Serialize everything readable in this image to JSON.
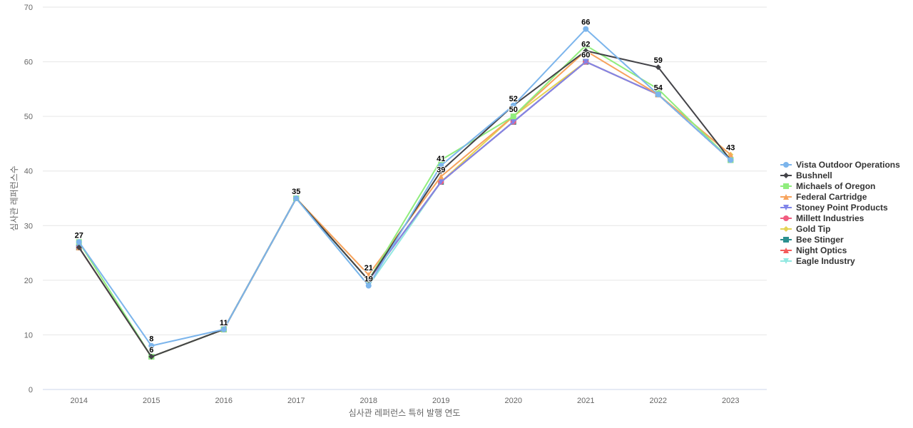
{
  "chart_data": {
    "type": "line",
    "xlabel": "심사관 레퍼런스 특허 발행 연도",
    "ylabel": "심사관 레퍼런스수",
    "ylim": [
      0,
      70
    ],
    "yticks": [
      0,
      10,
      20,
      30,
      40,
      50,
      60,
      70
    ],
    "grid": true,
    "legend_position": "right",
    "categories": [
      "2014",
      "2015",
      "2016",
      "2017",
      "2018",
      "2019",
      "2020",
      "2021",
      "2022",
      "2023"
    ],
    "series": [
      {
        "name": "Vista Outdoor Operations",
        "color": "#7cb5ec",
        "marker": "circle",
        "values": [
          27,
          8,
          11,
          35,
          19,
          41,
          52,
          66,
          54,
          42
        ]
      },
      {
        "name": "Bushnell",
        "color": "#434348",
        "marker": "diamond",
        "values": [
          26,
          6,
          11,
          35,
          20,
          40,
          52,
          62,
          59,
          42
        ]
      },
      {
        "name": "Michaels of Oregon",
        "color": "#90ed7d",
        "marker": "square",
        "values": [
          27,
          6,
          11,
          35,
          20,
          42,
          50,
          63,
          55,
          42
        ]
      },
      {
        "name": "Federal Cartridge",
        "color": "#f7a35c",
        "marker": "triangle",
        "values": [
          26,
          6,
          11,
          35,
          21,
          39,
          50,
          62,
          54,
          43
        ]
      },
      {
        "name": "Stoney Point Products",
        "color": "#8085e9",
        "marker": "triangle-down",
        "values": [
          26,
          6,
          11,
          35,
          20,
          38,
          49,
          60,
          54,
          42
        ]
      },
      {
        "name": "Millett Industries",
        "color": "#f15c80",
        "marker": "circle",
        "values": [
          26,
          6,
          11,
          35,
          20,
          38,
          49,
          60,
          54,
          42
        ]
      },
      {
        "name": "Gold Tip",
        "color": "#e4d354",
        "marker": "diamond",
        "values": [
          26,
          6,
          11,
          35,
          20,
          38,
          50,
          60,
          54,
          43
        ]
      },
      {
        "name": "Bee Stinger",
        "color": "#2b908f",
        "marker": "square",
        "values": [
          26,
          6,
          11,
          35,
          20,
          38,
          49,
          60,
          54,
          42
        ]
      },
      {
        "name": "Night Optics",
        "color": "#f45b5b",
        "marker": "triangle",
        "values": [
          26,
          6,
          11,
          35,
          20,
          38,
          49,
          60,
          54,
          42
        ]
      },
      {
        "name": "Eagle Industry",
        "color": "#91e8e1",
        "marker": "triangle-down",
        "values": [
          26,
          6,
          11,
          35,
          19,
          38,
          49,
          60,
          54,
          42
        ]
      }
    ],
    "data_labels": [
      {
        "x": "2014",
        "value": 27
      },
      {
        "x": "2015",
        "value": 8
      },
      {
        "x": "2015",
        "value": 6
      },
      {
        "x": "2016",
        "value": 11
      },
      {
        "x": "2017",
        "value": 35
      },
      {
        "x": "2018",
        "value": 21
      },
      {
        "x": "2018",
        "value": 19
      },
      {
        "x": "2019",
        "value": 41
      },
      {
        "x": "2019",
        "value": 39
      },
      {
        "x": "2020",
        "value": 52
      },
      {
        "x": "2020",
        "value": 50
      },
      {
        "x": "2021",
        "value": 66
      },
      {
        "x": "2021",
        "value": 62
      },
      {
        "x": "2021",
        "value": 60
      },
      {
        "x": "2022",
        "value": 59
      },
      {
        "x": "2022",
        "value": 54
      },
      {
        "x": "2023",
        "value": 43
      }
    ]
  }
}
